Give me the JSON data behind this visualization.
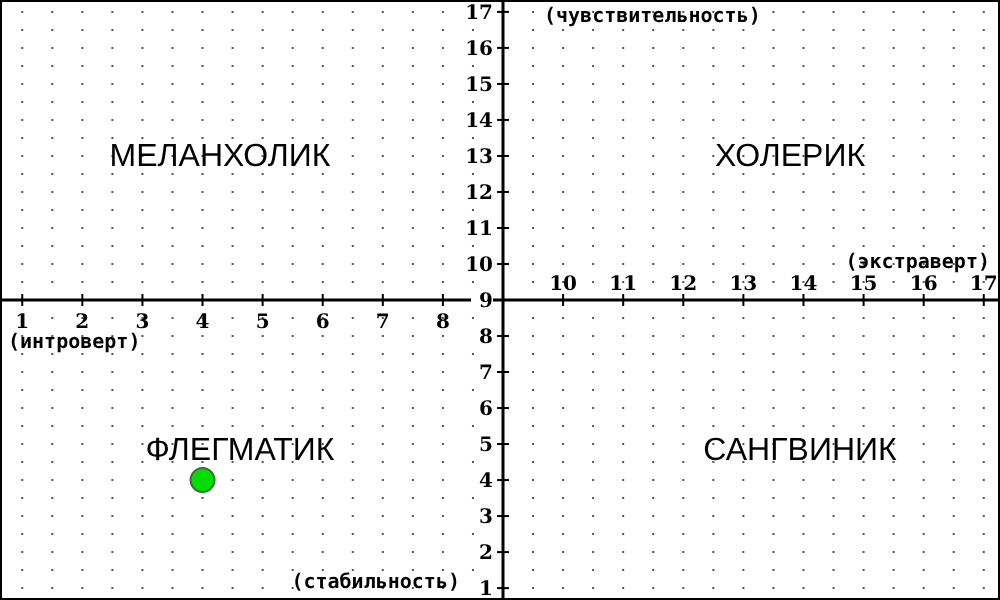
{
  "chart_data": {
    "type": "scatter",
    "x": [
      4
    ],
    "series": [
      {
        "color": "#00dd00",
        "values": [
          4
        ]
      }
    ],
    "marker": "circle",
    "xlim": [
      0.63,
      17.27
    ],
    "ylim": [
      0.67,
      17.33
    ],
    "xticks": [
      1,
      2,
      3,
      4,
      5,
      6,
      7,
      8,
      {
        "value": 9,
        "label": null
      }
    ],
    "x2lim": [
      0.63,
      17.27
    ],
    "x2ticks": [
      10,
      11,
      12,
      13,
      14,
      15,
      16,
      17
    ],
    "yticks": [
      1,
      2,
      3,
      4,
      5,
      6,
      7,
      8,
      9,
      10,
      11,
      12,
      13,
      14,
      15,
      16,
      17
    ],
    "grid": true,
    "annotations": [
      "МЕЛАНХОЛИК",
      "ХОЛЕРИК",
      "ФЛЕГМАТИК",
      "САНГВИНИК",
      "(интроверт)",
      "(экстраверт)",
      "(чувствительность)",
      "(стабильность)"
    ]
  }
}
